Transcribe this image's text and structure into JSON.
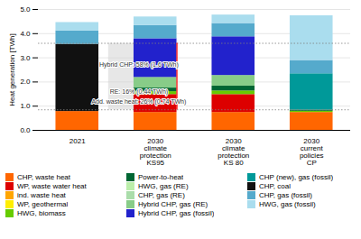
{
  "chart_data": {
    "type": "bar",
    "stacked": true,
    "categories": [
      "2021",
      "2030\nclimate\nprotection\nKS95",
      "2030\nclimate\nprotection\nKS 80",
      "2030\ncurrent\npolicies\nCP"
    ],
    "series": [
      {
        "name": "CHP, waste heat",
        "color": "#FF6600",
        "values": [
          0.78,
          0.74,
          0.74,
          0.74
        ]
      },
      {
        "name": "WP, waste water heat",
        "color": "#DD0000",
        "values": [
          0.0,
          0.74,
          0.74,
          0.0
        ]
      },
      {
        "name": "ind. waste heat",
        "color": "#FFA500",
        "values": [
          0.0,
          0.0,
          0.0,
          0.0
        ]
      },
      {
        "name": "WP, geothermal",
        "color": "#FFEE00",
        "values": [
          0.0,
          0.0,
          0.0,
          0.0
        ]
      },
      {
        "name": "HWG, biomass",
        "color": "#66CC00",
        "values": [
          0.0,
          0.12,
          0.15,
          0.05
        ]
      },
      {
        "name": "Power-to-heat",
        "color": "#006633",
        "values": [
          0.0,
          0.15,
          0.2,
          0.05
        ]
      },
      {
        "name": "HWG, gas (RE)",
        "color": "#BBEEAA",
        "values": [
          0.0,
          0.0,
          0.0,
          0.0
        ]
      },
      {
        "name": "CHP, gas (RE)",
        "color": "#AADDAA",
        "values": [
          0.0,
          0.0,
          0.0,
          0.0
        ]
      },
      {
        "name": "Hybrid CHP, gas (RE)",
        "color": "#88CC88",
        "values": [
          0.0,
          0.44,
          0.44,
          0.0
        ]
      },
      {
        "name": "Hybrid CHP, gas (fossil)",
        "color": "#2222CC",
        "values": [
          0.0,
          1.6,
          1.6,
          0.0
        ]
      },
      {
        "name": "CHP (new), gas (fossil)",
        "color": "#009999",
        "values": [
          0.0,
          0.0,
          0.0,
          1.5
        ]
      },
      {
        "name": "CHP, coal",
        "color": "#111111",
        "values": [
          2.78,
          0.0,
          0.0,
          0.0
        ]
      },
      {
        "name": "CHP, gas (fossil)",
        "color": "#55AACC",
        "values": [
          0.55,
          0.55,
          0.55,
          0.55
        ]
      },
      {
        "name": "HWG, gas (fossil)",
        "color": "#AADDEE",
        "values": [
          0.35,
          0.35,
          0.35,
          1.85
        ]
      }
    ],
    "ylabel": "Heat generation [TWh]",
    "ylim": [
      0,
      5
    ],
    "yticks": [
      0,
      1,
      2,
      3,
      4,
      5
    ],
    "grid": true,
    "legend": "bottom",
    "hlines": [
      0.85,
      3.6
    ],
    "red_line": {
      "category": "2030\nclimate\nprotection\nKS95",
      "color": "red"
    },
    "annotations": [
      {
        "text": "Hybrid CHP: 58% (1.6 TWh)",
        "y": 2.7
      },
      {
        "text": "RE: 16% (0.44 TWh)",
        "y": 1.58
      },
      {
        "text": "Add. waste heat: 26% (0.74 TWh)",
        "y": 1.18
      }
    ]
  }
}
